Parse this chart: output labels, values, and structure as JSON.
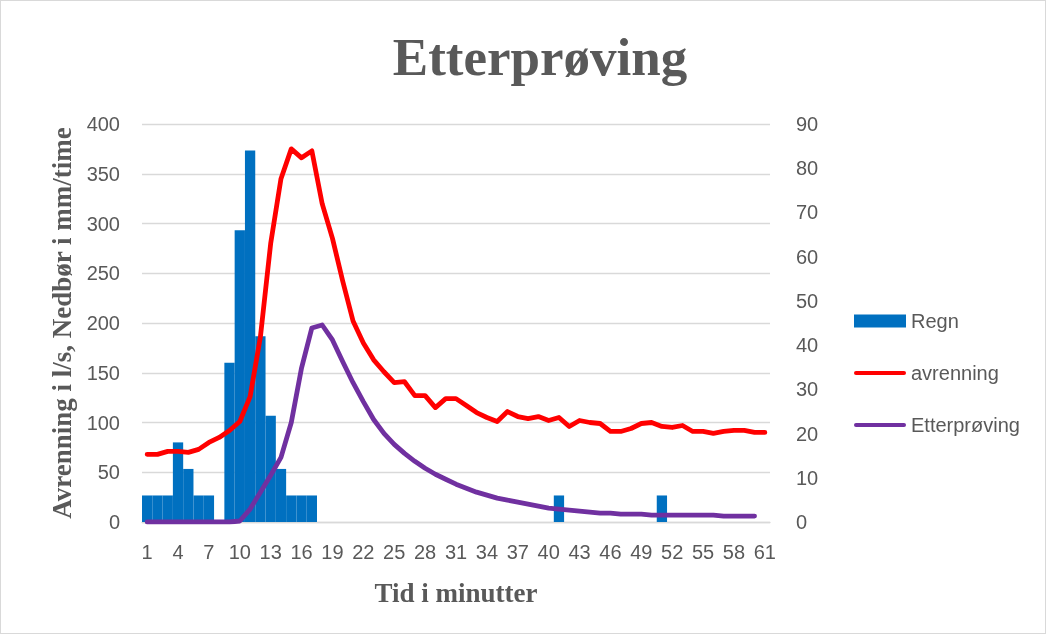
{
  "chart_data": {
    "type": "bar",
    "title": "Etterprøving",
    "xlabel": "Tid i minutter",
    "ylabel": "Avrenning i l/s, Nedbør i mm/time",
    "categories": [
      "1",
      null,
      null,
      "4",
      null,
      null,
      "7",
      null,
      null,
      "10",
      null,
      null,
      "13",
      null,
      null,
      "16",
      null,
      null,
      "19",
      null,
      null,
      "22",
      null,
      null,
      "25",
      null,
      null,
      "28",
      null,
      null,
      "31",
      null,
      null,
      "34",
      null,
      null,
      "37",
      null,
      null,
      "40",
      null,
      null,
      "43",
      null,
      null,
      "46",
      null,
      null,
      "49",
      null,
      null,
      "52",
      null,
      null,
      "55",
      null,
      null,
      "58",
      null,
      null,
      "61"
    ],
    "series": [
      {
        "name": "Regn",
        "axis": "y2",
        "color": "#0070c0",
        "values": [
          6,
          6,
          6,
          18,
          12,
          6,
          6,
          null,
          36,
          66,
          84,
          42,
          24,
          12,
          6,
          6,
          6,
          null,
          null,
          null,
          null,
          null,
          null,
          null,
          null,
          null,
          null,
          null,
          null,
          null,
          null,
          null,
          null,
          null,
          null,
          null,
          null,
          null,
          null,
          null,
          6,
          null,
          null,
          null,
          null,
          null,
          null,
          null,
          null,
          null,
          6,
          null,
          null,
          null,
          null,
          null,
          null,
          null,
          null,
          null,
          null
        ]
      },
      {
        "name": "avrenning",
        "type": "line",
        "color": "#ff0000",
        "values": [
          68,
          68,
          71,
          71,
          70,
          73,
          80,
          85,
          92,
          101,
          126,
          186,
          280,
          345,
          375,
          366,
          373,
          320,
          285,
          242,
          202,
          180,
          163,
          151,
          140,
          141,
          127,
          127,
          115,
          124,
          124,
          117,
          110,
          105,
          101,
          111,
          106,
          104,
          106,
          102,
          105,
          96,
          102,
          100,
          99,
          91,
          91,
          94,
          99,
          100,
          96,
          95,
          97,
          91,
          91,
          89,
          91,
          92,
          92,
          90,
          90
        ]
      },
      {
        "name": "Etterprøving",
        "type": "line",
        "color": "#7030a0",
        "values": [
          0,
          0,
          0,
          0,
          0,
          0,
          0,
          0,
          0,
          1,
          13,
          30,
          47,
          65,
          100,
          155,
          195,
          198,
          183,
          161,
          140,
          121,
          103,
          89,
          78,
          69,
          61,
          54,
          48,
          43,
          38,
          34,
          30,
          27,
          24,
          22,
          20,
          18,
          16,
          14,
          13,
          12,
          11,
          10,
          9,
          9,
          8,
          8,
          8,
          7,
          7,
          7,
          7,
          7,
          7,
          7,
          6,
          6,
          6,
          6,
          null
        ]
      }
    ],
    "ylim": [
      0,
      400
    ],
    "yticks": [
      0,
      50,
      100,
      150,
      200,
      250,
      300,
      350,
      400
    ],
    "y2lim": [
      0,
      90
    ],
    "y2ticks": [
      0,
      10,
      20,
      30,
      40,
      50,
      60,
      70,
      80,
      90
    ],
    "grid": "y",
    "legend": "right",
    "marker": "none",
    "line_style": "solid"
  }
}
